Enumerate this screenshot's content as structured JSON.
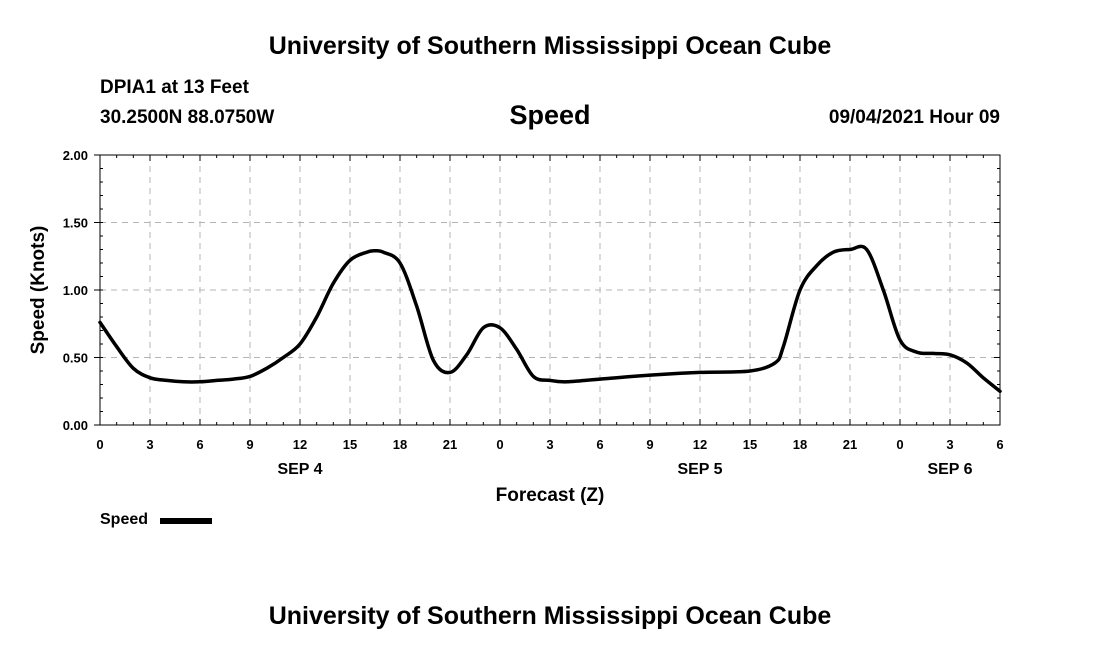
{
  "header": {
    "title_top": "University of Southern Mississippi Ocean Cube",
    "station": "DPIA1 at 13 Feet",
    "coordinates": "30.2500N  88.0750W",
    "parameter": "Speed",
    "datetime": "09/04/2021 Hour 09"
  },
  "footer": {
    "title_bottom": "University of Southern Mississippi Ocean Cube"
  },
  "chart_data": {
    "type": "line",
    "title": "Speed",
    "xlabel": "Forecast (Z)",
    "ylabel": "Speed (Knots)",
    "ylim": [
      0,
      2
    ],
    "yticks": [
      "0.00",
      "0.50",
      "1.00",
      "1.50",
      "2.00"
    ],
    "ytick_values": [
      0,
      0.5,
      1,
      1.5,
      2
    ],
    "xlim": [
      0,
      54
    ],
    "xtick_labels": [
      "0",
      "3",
      "6",
      "9",
      "12",
      "15",
      "18",
      "21",
      "0",
      "3",
      "6",
      "9",
      "12",
      "15",
      "18",
      "21",
      "0",
      "3",
      "6"
    ],
    "day_labels": [
      {
        "label": "SEP 4",
        "at_hour": 12
      },
      {
        "label": "SEP 5",
        "at_hour": 36
      },
      {
        "label": "SEP 6",
        "at_hour": 51
      }
    ],
    "grid": true,
    "legend": {
      "position": "bottom-left",
      "entries": [
        "Speed"
      ]
    },
    "series": [
      {
        "name": "Speed",
        "color": "#000000",
        "x": [
          0,
          1,
          2,
          3,
          4,
          5,
          6,
          7,
          8,
          9,
          10,
          11,
          12,
          13,
          14,
          15,
          16,
          16.5,
          17,
          18,
          19,
          20,
          21,
          22,
          23,
          24,
          25,
          26,
          27,
          28,
          30,
          33,
          36,
          39,
          40.5,
          41,
          42,
          43,
          44,
          45,
          46,
          47,
          48,
          49,
          50,
          51,
          52,
          53,
          54
        ],
        "values": [
          0.76,
          0.58,
          0.42,
          0.35,
          0.33,
          0.32,
          0.32,
          0.33,
          0.34,
          0.36,
          0.42,
          0.5,
          0.6,
          0.8,
          1.05,
          1.22,
          1.28,
          1.29,
          1.28,
          1.2,
          0.88,
          0.48,
          0.39,
          0.52,
          0.72,
          0.72,
          0.56,
          0.36,
          0.33,
          0.32,
          0.34,
          0.37,
          0.39,
          0.4,
          0.46,
          0.58,
          1.0,
          1.18,
          1.28,
          1.3,
          1.3,
          1.0,
          0.63,
          0.54,
          0.53,
          0.52,
          0.46,
          0.35,
          0.25
        ]
      }
    ]
  }
}
